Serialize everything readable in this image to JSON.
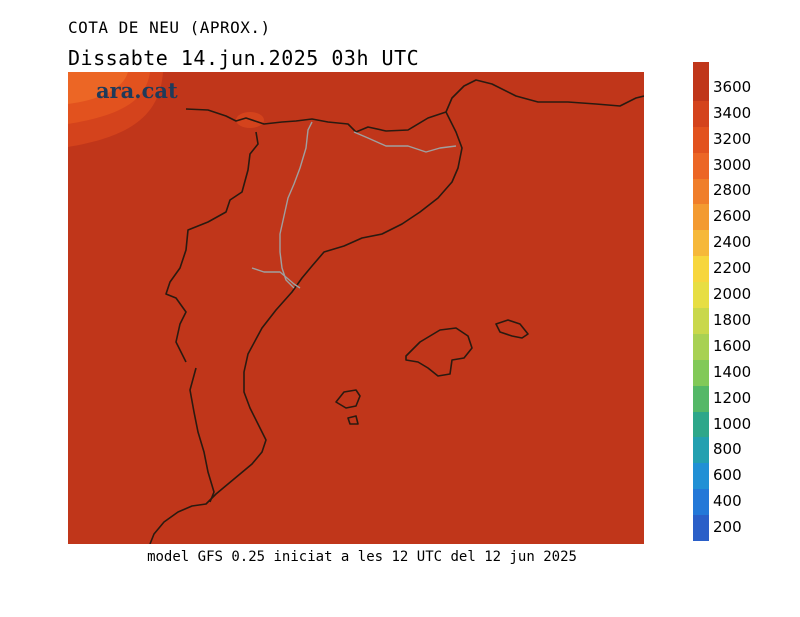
{
  "title": "COTA DE NEU (APROX.)",
  "subtitle": "Dissabte   14.jun.2025 03h UTC",
  "logo": "ara.cat",
  "footer": "model GFS 0.25 iniciat a les 12 UTC del 12 jun 2025",
  "map": {
    "variable": "snow level (m)",
    "dominant_level": 3600,
    "background_color": "#c0361a",
    "coast_color": "#2a1a10",
    "border_color": "#a0a0a0"
  },
  "legend": {
    "ticks": [
      "3600",
      "3400",
      "3200",
      "3000",
      "2800",
      "2600",
      "2400",
      "2200",
      "2000",
      "1800",
      "1600",
      "1400",
      "1200",
      "1000",
      "800",
      "600",
      "400",
      "200"
    ],
    "colors": [
      "#c0361a",
      "#d4431c",
      "#e2521e",
      "#ec6625",
      "#f07e2a",
      "#f39a31",
      "#f6b83a",
      "#f7d63d",
      "#e7de43",
      "#c9d84b",
      "#a8d153",
      "#82c958",
      "#54b867",
      "#2ea78a",
      "#23a0b0",
      "#2190d5",
      "#2378d8",
      "#2a5fc8"
    ]
  }
}
